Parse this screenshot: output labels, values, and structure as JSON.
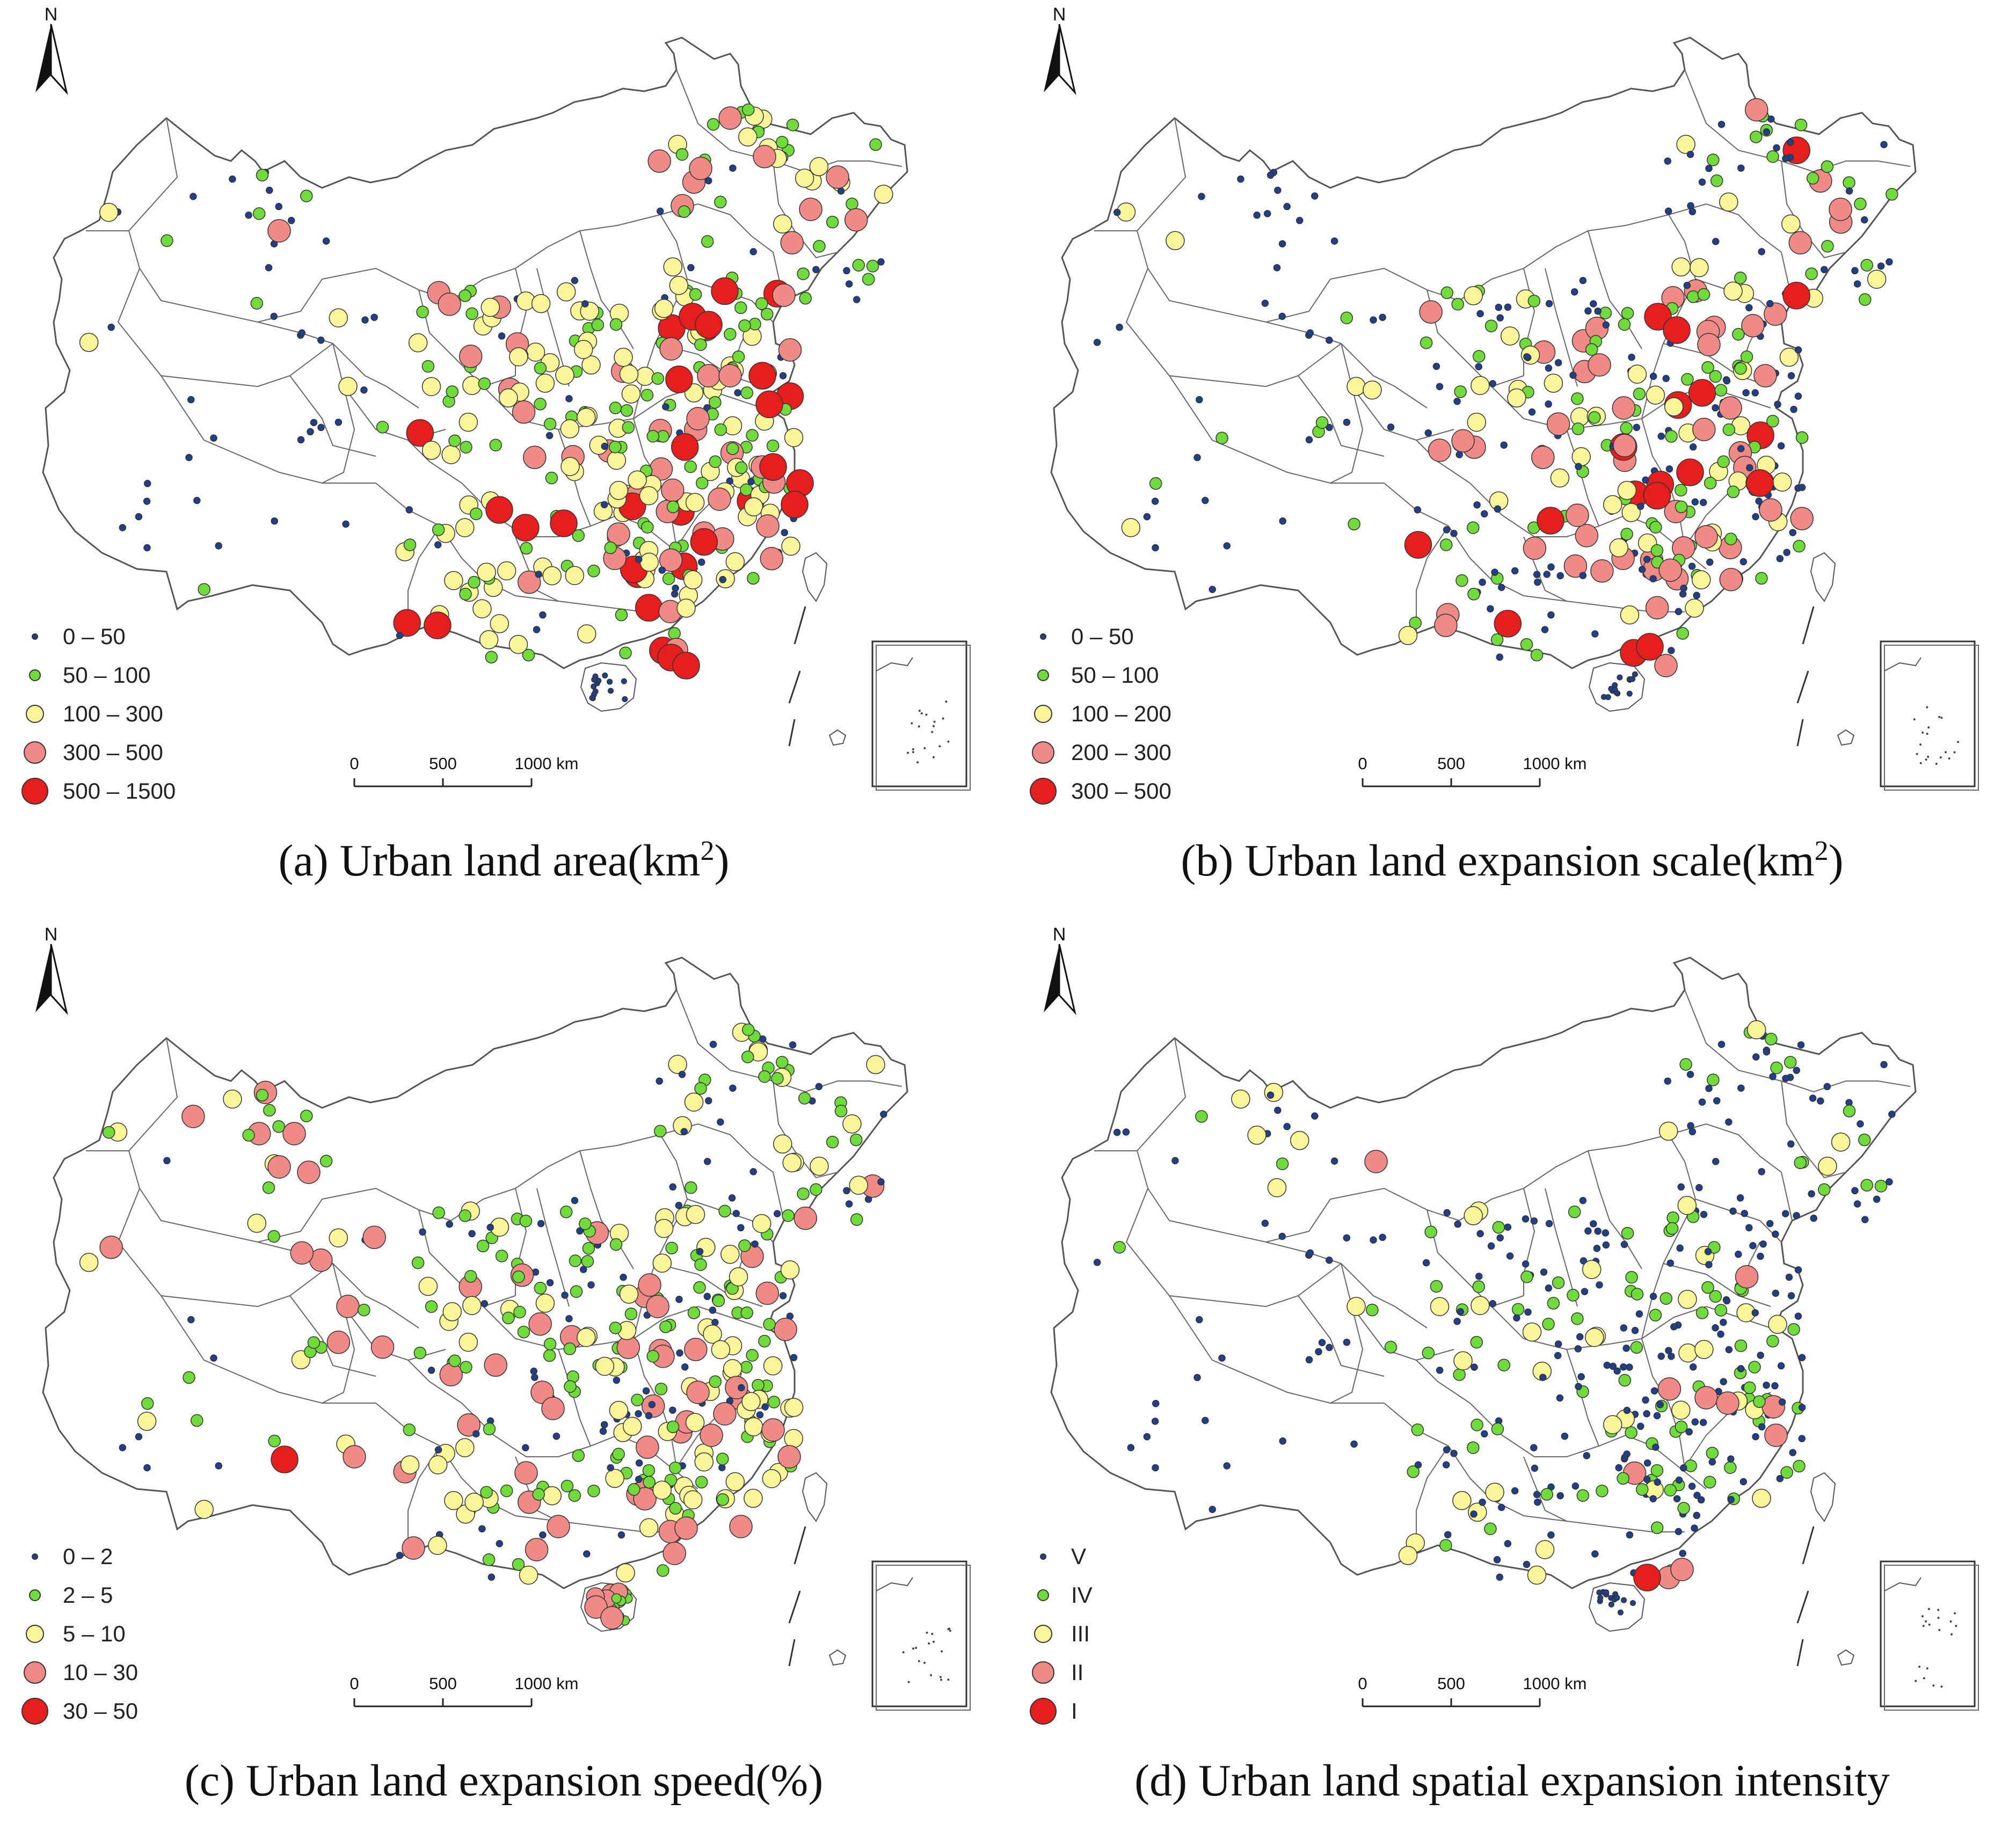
{
  "panels": [
    {
      "caption": "(a) Urban land area(km",
      "caption_sup": "2",
      "caption_end": ")",
      "legend": [
        {
          "label": "0 – 50",
          "color": "#1f3f8f",
          "size": 12
        },
        {
          "label": "50 – 100",
          "color": "#6fdc3a",
          "size": 22
        },
        {
          "label": "100 – 300",
          "color": "#fbf59a",
          "size": 34
        },
        {
          "label": "300 – 500",
          "color": "#f08a86",
          "size": 42
        },
        {
          "label": "500 – 1500",
          "color": "#e61e1e",
          "size": 50
        }
      ]
    },
    {
      "caption": "(b) Urban land expansion scale(km",
      "caption_sup": "2",
      "caption_end": ")",
      "legend": [
        {
          "label": "0 – 50",
          "color": "#1f3f8f",
          "size": 12
        },
        {
          "label": "50 – 100",
          "color": "#6fdc3a",
          "size": 22
        },
        {
          "label": "100 – 200",
          "color": "#fbf59a",
          "size": 34
        },
        {
          "label": "200 – 300",
          "color": "#f08a86",
          "size": 42
        },
        {
          "label": "300 – 500",
          "color": "#e61e1e",
          "size": 50
        }
      ]
    },
    {
      "caption": "(c) Urban land expansion speed(%)",
      "caption_sup": "",
      "caption_end": "",
      "legend": [
        {
          "label": "0 – 2",
          "color": "#1f3f8f",
          "size": 12
        },
        {
          "label": "2 – 5",
          "color": "#6fdc3a",
          "size": 22
        },
        {
          "label": "5 – 10",
          "color": "#fbf59a",
          "size": 34
        },
        {
          "label": "10 – 30",
          "color": "#f08a86",
          "size": 42
        },
        {
          "label": "30 – 50",
          "color": "#e61e1e",
          "size": 50
        }
      ]
    },
    {
      "caption": "(d) Urban land spatial expansion intensity",
      "caption_sup": "",
      "caption_end": "",
      "legend": [
        {
          "label": "V",
          "color": "#1f3f8f",
          "size": 12
        },
        {
          "label": "IV",
          "color": "#6fdc3a",
          "size": 22
        },
        {
          "label": "III",
          "color": "#fbf59a",
          "size": 34
        },
        {
          "label": "II",
          "color": "#f08a86",
          "size": 42
        },
        {
          "label": "I",
          "color": "#e61e1e",
          "size": 50
        }
      ]
    }
  ],
  "north_label": "N",
  "scale_bar": {
    "ticks": [
      "0",
      "500",
      "1000 km"
    ]
  },
  "icons": [
    "north-arrow-icon",
    "scale-bar-icon",
    "south-china-sea-inset-icon"
  ]
}
